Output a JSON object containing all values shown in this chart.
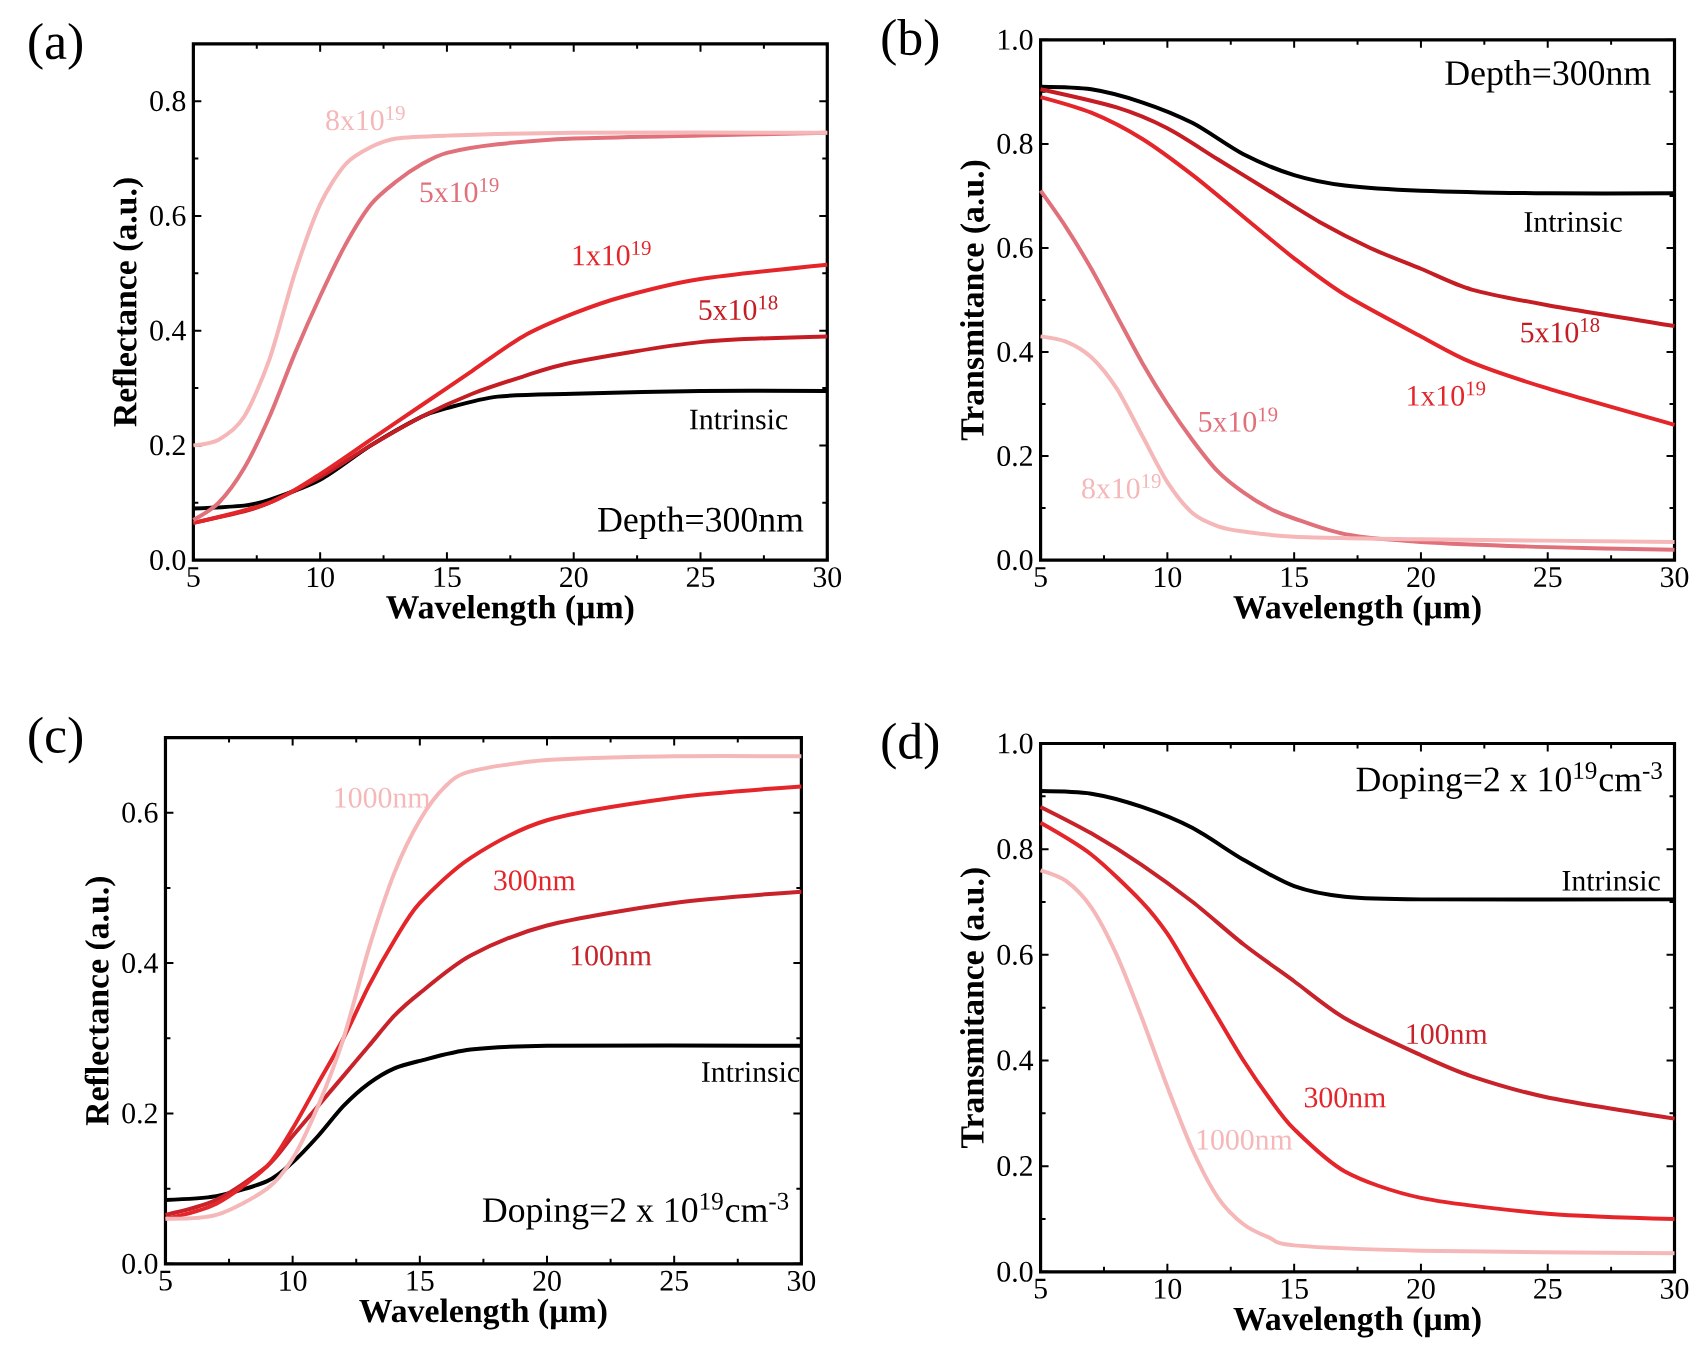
{
  "chart_data": [
    {
      "type": "line",
      "title": "(a)",
      "xlabel": "Wavelength (µm)",
      "ylabel": "Reflectance (a.u.)",
      "xlim": [
        5,
        30
      ],
      "ylim": [
        0,
        0.9
      ],
      "xticks": [
        5,
        10,
        15,
        20,
        25,
        30
      ],
      "yticks": [
        {
          "value": 0,
          "label": "0.0"
        },
        {
          "value": 0.2,
          "label": "0.2"
        },
        {
          "value": 0.4,
          "label": "0.4"
        },
        {
          "value": 0.6,
          "label": "0.6"
        },
        {
          "value": 0.8,
          "label": "0.8"
        }
      ],
      "annotations": [
        "Depth=300nm"
      ],
      "series": [
        {
          "name": "Intrinsic",
          "color": "#000000",
          "x": [
            5,
            7,
            8,
            10,
            12,
            14,
            15,
            17,
            20,
            25,
            30
          ],
          "values": [
            0.09,
            0.095,
            0.105,
            0.14,
            0.2,
            0.25,
            0.265,
            0.285,
            0.29,
            0.295,
            0.295
          ]
        },
        {
          "name": "5x10$^{18}$",
          "color": "#c41e24",
          "x": [
            5,
            7,
            8,
            10,
            12,
            14,
            16,
            18,
            20,
            25,
            30
          ],
          "values": [
            0.065,
            0.085,
            0.1,
            0.145,
            0.2,
            0.25,
            0.29,
            0.32,
            0.345,
            0.38,
            0.39
          ]
        },
        {
          "name": "1x10$^{19}$",
          "color": "#e4262b",
          "x": [
            5,
            8,
            10,
            12,
            14,
            16,
            18,
            20,
            22,
            25,
            30
          ],
          "values": [
            0.065,
            0.1,
            0.15,
            0.21,
            0.27,
            0.33,
            0.39,
            0.43,
            0.46,
            0.49,
            0.515
          ]
        },
        {
          "name": "5x10$^{19}$",
          "color": "#e0707a",
          "x": [
            5,
            6,
            7,
            8,
            9,
            10,
            11,
            12,
            13,
            14,
            15,
            17,
            20,
            25,
            30
          ],
          "values": [
            0.07,
            0.1,
            0.16,
            0.25,
            0.36,
            0.46,
            0.55,
            0.62,
            0.66,
            0.69,
            0.71,
            0.725,
            0.735,
            0.74,
            0.745
          ]
        },
        {
          "name": "8x10$^{19}$",
          "color": "#f5b7b8",
          "x": [
            5,
            6,
            7,
            8,
            9,
            10,
            11,
            12,
            13,
            15,
            20,
            30
          ],
          "values": [
            0.2,
            0.21,
            0.25,
            0.35,
            0.5,
            0.62,
            0.69,
            0.72,
            0.735,
            0.74,
            0.745,
            0.745
          ]
        }
      ]
    },
    {
      "type": "line",
      "title": "(b)",
      "xlabel": "Wavelength (µm)",
      "ylabel": "Transmitance (a.u.)",
      "xlim": [
        5,
        30
      ],
      "ylim": [
        0,
        1
      ],
      "xticks": [
        5,
        10,
        15,
        20,
        25,
        30
      ],
      "yticks": [
        {
          "value": 0,
          "label": "0.0"
        },
        {
          "value": 0.2,
          "label": "0.2"
        },
        {
          "value": 0.4,
          "label": "0.4"
        },
        {
          "value": 0.6,
          "label": "0.6"
        },
        {
          "value": 0.8,
          "label": "0.8"
        },
        {
          "value": 1,
          "label": "1.0"
        }
      ],
      "annotations": [
        "Depth=300nm"
      ],
      "series": [
        {
          "name": "Intrinsic",
          "color": "#000000",
          "x": [
            5,
            7,
            9,
            11,
            13,
            15,
            17,
            20,
            25,
            30
          ],
          "values": [
            0.91,
            0.905,
            0.88,
            0.84,
            0.78,
            0.74,
            0.72,
            0.71,
            0.705,
            0.705
          ]
        },
        {
          "name": "5x10$^{18}$",
          "color": "#c41e24",
          "x": [
            5,
            8,
            10,
            12,
            14,
            16,
            18,
            20,
            22,
            25,
            30
          ],
          "values": [
            0.905,
            0.87,
            0.83,
            0.77,
            0.71,
            0.65,
            0.6,
            0.56,
            0.52,
            0.49,
            0.45
          ]
        },
        {
          "name": "1x10$^{19}$",
          "color": "#e4262b",
          "x": [
            5,
            7,
            9,
            11,
            13,
            15,
            17,
            20,
            22,
            25,
            30
          ],
          "values": [
            0.89,
            0.86,
            0.81,
            0.74,
            0.66,
            0.58,
            0.51,
            0.43,
            0.38,
            0.33,
            0.26
          ]
        },
        {
          "name": "5x10$^{19}$",
          "color": "#e0707a",
          "x": [
            5,
            6,
            7,
            8,
            9,
            10,
            11,
            12,
            13,
            14,
            15,
            17,
            20,
            25,
            30
          ],
          "values": [
            0.71,
            0.64,
            0.56,
            0.47,
            0.38,
            0.3,
            0.23,
            0.17,
            0.13,
            0.1,
            0.08,
            0.05,
            0.035,
            0.025,
            0.02
          ]
        },
        {
          "name": "8x10$^{19}$",
          "color": "#f5b7b8",
          "x": [
            5,
            6,
            7,
            8,
            9,
            10,
            11,
            12,
            13,
            15,
            20,
            30
          ],
          "values": [
            0.43,
            0.42,
            0.39,
            0.33,
            0.24,
            0.15,
            0.09,
            0.065,
            0.055,
            0.045,
            0.04,
            0.035
          ]
        }
      ]
    },
    {
      "type": "line",
      "title": "(c)",
      "xlabel": "Wavelength (µm)",
      "ylabel": "Reflectance (a.u.)",
      "xlim": [
        5,
        30
      ],
      "ylim": [
        0,
        0.7
      ],
      "xticks": [
        5,
        10,
        15,
        20,
        25,
        30
      ],
      "yticks": [
        {
          "value": 0,
          "label": "0.0"
        },
        {
          "value": 0.2,
          "label": "0.2"
        },
        {
          "value": 0.4,
          "label": "0.4"
        },
        {
          "value": 0.6,
          "label": "0.6"
        }
      ],
      "annotations": [
        "Doping=2 x 10$^{19}$cm$^{-3}$"
      ],
      "series": [
        {
          "name": "Intrinsic",
          "color": "#000000",
          "x": [
            5,
            7,
            9,
            10,
            11,
            12,
            13,
            14,
            15,
            17,
            20,
            30
          ],
          "values": [
            0.085,
            0.09,
            0.11,
            0.135,
            0.17,
            0.21,
            0.24,
            0.26,
            0.27,
            0.285,
            0.29,
            0.29
          ]
        },
        {
          "name": "100nm",
          "color": "#c8232a",
          "x": [
            5,
            7,
            9,
            10,
            11,
            12,
            13,
            14,
            15,
            17,
            20,
            25,
            30
          ],
          "values": [
            0.065,
            0.085,
            0.13,
            0.17,
            0.21,
            0.25,
            0.29,
            0.33,
            0.36,
            0.41,
            0.45,
            0.48,
            0.495
          ]
        },
        {
          "name": "300nm",
          "color": "#e4262b",
          "x": [
            5,
            7,
            9,
            10,
            11,
            12,
            13,
            14,
            15,
            17,
            20,
            25,
            30
          ],
          "values": [
            0.06,
            0.08,
            0.13,
            0.18,
            0.24,
            0.3,
            0.37,
            0.43,
            0.48,
            0.54,
            0.59,
            0.62,
            0.635
          ]
        },
        {
          "name": "1000nm",
          "color": "#f5b7b8",
          "x": [
            5,
            7,
            9,
            10,
            11,
            12,
            13,
            14,
            15,
            16,
            17,
            20,
            25,
            30
          ],
          "values": [
            0.06,
            0.065,
            0.1,
            0.14,
            0.21,
            0.3,
            0.42,
            0.52,
            0.59,
            0.635,
            0.655,
            0.67,
            0.675,
            0.675
          ]
        }
      ]
    },
    {
      "type": "line",
      "title": "(d)",
      "xlabel": "Wavelength (µm)",
      "ylabel": "Transmitance (a.u.)",
      "xlim": [
        5,
        30
      ],
      "ylim": [
        0,
        1
      ],
      "xticks": [
        5,
        10,
        15,
        20,
        25,
        30
      ],
      "yticks": [
        {
          "value": 0,
          "label": "0.0"
        },
        {
          "value": 0.2,
          "label": "0.2"
        },
        {
          "value": 0.4,
          "label": "0.4"
        },
        {
          "value": 0.6,
          "label": "0.6"
        },
        {
          "value": 0.8,
          "label": "0.8"
        },
        {
          "value": 1,
          "label": "1.0"
        }
      ],
      "annotations": [
        "Doping=2 x 10$^{19}$cm$^{-3}$"
      ],
      "series": [
        {
          "name": "Intrinsic",
          "color": "#000000",
          "x": [
            5,
            7,
            9,
            11,
            13,
            15,
            17,
            20,
            30
          ],
          "values": [
            0.91,
            0.905,
            0.88,
            0.84,
            0.78,
            0.73,
            0.71,
            0.705,
            0.705
          ]
        },
        {
          "name": "100nm",
          "color": "#c8232a",
          "x": [
            5,
            7,
            9,
            11,
            13,
            15,
            17,
            20,
            22,
            25,
            30
          ],
          "values": [
            0.88,
            0.83,
            0.77,
            0.7,
            0.62,
            0.55,
            0.48,
            0.41,
            0.37,
            0.33,
            0.29
          ]
        },
        {
          "name": "300nm",
          "color": "#e4262b",
          "x": [
            5,
            7,
            9,
            10,
            11,
            12,
            13,
            14,
            15,
            17,
            20,
            25,
            30
          ],
          "values": [
            0.85,
            0.79,
            0.7,
            0.64,
            0.56,
            0.48,
            0.4,
            0.33,
            0.27,
            0.19,
            0.14,
            0.11,
            0.1
          ]
        },
        {
          "name": "1000nm",
          "color": "#f5b7b8",
          "x": [
            5,
            6,
            7,
            8,
            9,
            10,
            11,
            12,
            13,
            14,
            15,
            20,
            30
          ],
          "values": [
            0.76,
            0.74,
            0.69,
            0.6,
            0.48,
            0.35,
            0.23,
            0.14,
            0.09,
            0.065,
            0.05,
            0.04,
            0.035
          ]
        }
      ]
    }
  ]
}
